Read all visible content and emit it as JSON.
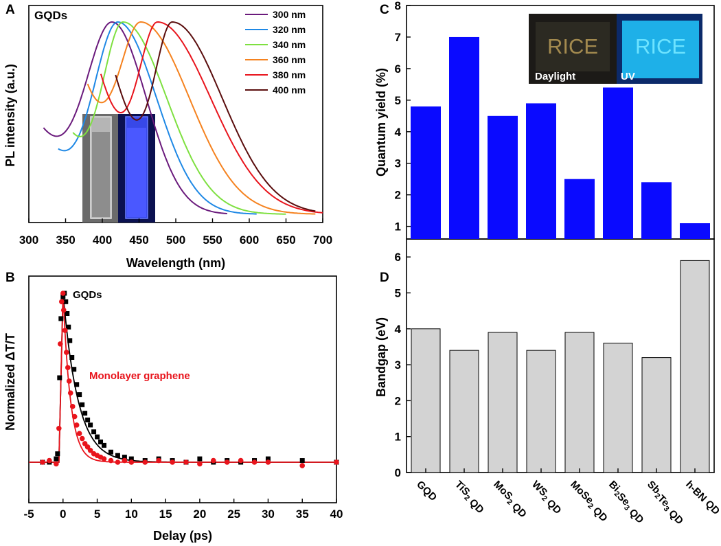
{
  "chart_data": [
    {
      "panel": "A",
      "type": "line",
      "title": "GQDs",
      "xlabel": "Wavelength (nm)",
      "ylabel": "PL intensity (a.u.)",
      "xlim": [
        300,
        700
      ],
      "xticks": [
        300,
        350,
        400,
        450,
        500,
        550,
        600,
        650,
        700
      ],
      "legend_position": "top-right",
      "series": [
        {
          "name": "300 nm",
          "color": "#6a1a7c",
          "x_start": 320,
          "x_end": 570,
          "peak": 413,
          "start_level": 0.42,
          "width_left": 45,
          "width_right": 55
        },
        {
          "name": "320 nm",
          "color": "#1e88e5",
          "x_start": 340,
          "x_end": 610,
          "peak": 421,
          "start_level": 0.3,
          "width_left": 40,
          "width_right": 62
        },
        {
          "name": "340 nm",
          "color": "#7ee040",
          "x_start": 360,
          "x_end": 650,
          "peak": 428,
          "start_level": 0.38,
          "width_left": 35,
          "width_right": 70
        },
        {
          "name": "360 nm",
          "color": "#f5821f",
          "x_start": 380,
          "x_end": 690,
          "peak": 452,
          "start_level": 0.64,
          "width_left": 40,
          "width_right": 78
        },
        {
          "name": "380 nm",
          "color": "#e8141c",
          "x_start": 398,
          "x_end": 700,
          "peak": 475,
          "start_level": 0.72,
          "width_left": 35,
          "width_right": 85
        },
        {
          "name": "400 nm",
          "color": "#5a0d0d",
          "x_start": 418,
          "x_end": 690,
          "peak": 495,
          "start_level": 0.72,
          "width_left": 32,
          "width_right": 80
        }
      ],
      "inset_label": "",
      "annotations": []
    },
    {
      "panel": "B",
      "type": "scatter",
      "xlabel": "Delay (ps)",
      "ylabel": "Normalized ΔT/T",
      "xlim": [
        -5,
        40
      ],
      "xticks": [
        -5,
        0,
        5,
        10,
        15,
        20,
        25,
        30,
        35,
        40
      ],
      "series": [
        {
          "name": "GQDs",
          "color": "#000000",
          "marker": "square",
          "tau": 2.2,
          "x": [
            -3,
            -2,
            -1,
            -0.8,
            -0.5,
            -0.3,
            0,
            0.2,
            0.4,
            0.6,
            0.8,
            1.0,
            1.3,
            1.6,
            2.0,
            2.4,
            2.8,
            3.2,
            3.6,
            4.0,
            4.5,
            5.0,
            5.5,
            6.0,
            7.0,
            8.0,
            9.0,
            10,
            12,
            14,
            16,
            18,
            20,
            22,
            24,
            26,
            28,
            30,
            35,
            40
          ],
          "y": [
            0.0,
            0.0,
            0.02,
            0.05,
            0.5,
            0.85,
            0.98,
            1.0,
            0.95,
            0.88,
            0.8,
            0.72,
            0.62,
            0.55,
            0.46,
            0.4,
            0.34,
            0.29,
            0.25,
            0.22,
            0.18,
            0.15,
            0.12,
            0.1,
            0.06,
            0.04,
            0.03,
            0.02,
            0.01,
            0.02,
            0.01,
            0.0,
            0.02,
            0.0,
            0.01,
            0.0,
            0.01,
            0.02,
            0.01,
            0.0
          ]
        },
        {
          "name": "Monolayer graphene",
          "color": "#e8141c",
          "marker": "circle",
          "tau": 1.1,
          "x": [
            -3,
            -2,
            -1,
            -0.6,
            -0.4,
            -0.2,
            0,
            0.1,
            0.3,
            0.5,
            0.7,
            0.9,
            1.1,
            1.4,
            1.7,
            2.0,
            2.4,
            2.8,
            3.2,
            3.6,
            4.0,
            4.5,
            5.0,
            5.5,
            6.0,
            7.0,
            8.0,
            9.0,
            10,
            12,
            14,
            16,
            18,
            20,
            22,
            24,
            26,
            28,
            30,
            35,
            40
          ],
          "y": [
            0.0,
            0.01,
            -0.01,
            0.2,
            0.7,
            0.95,
            1.0,
            0.9,
            0.78,
            0.65,
            0.56,
            0.48,
            0.41,
            0.33,
            0.27,
            0.22,
            0.17,
            0.14,
            0.11,
            0.09,
            0.07,
            0.05,
            0.04,
            0.03,
            0.02,
            0.01,
            0.0,
            0.01,
            0.0,
            0.0,
            0.01,
            0.0,
            0.0,
            -0.01,
            0.01,
            0.0,
            0.01,
            0.0,
            0.0,
            -0.02,
            0.0
          ]
        }
      ]
    },
    {
      "panel": "C",
      "type": "bar",
      "ylabel": "Quantum yield (%)",
      "ylim": [
        0.6,
        8
      ],
      "yticks": [
        1,
        2,
        3,
        4,
        5,
        6,
        7,
        8
      ],
      "bar_color": "#0a0aff",
      "categories": [
        "GQD",
        "TiS2 QD",
        "MoS2 QD",
        "WS2 QD",
        "MoSe2 QD",
        "Bi2Se3 QD",
        "Sb2Te3 QD",
        "h-BN QD"
      ],
      "values": [
        4.8,
        7.0,
        4.5,
        4.9,
        2.5,
        5.4,
        2.4,
        1.1
      ],
      "inset_labels": [
        "RICE",
        "RICE",
        "Daylight",
        "UV"
      ]
    },
    {
      "panel": "D",
      "type": "bar",
      "ylabel": "Bandgap (eV)",
      "ylim": [
        0,
        6.5
      ],
      "yticks": [
        0,
        1,
        2,
        3,
        4,
        5,
        6
      ],
      "bar_color": "#d3d3d3",
      "categories": [
        "GQD",
        "TiS2 QD",
        "MoS2 QD",
        "WS2 QD",
        "MoSe2 QD",
        "Bi2Se3 QD",
        "Sb2Te3 QD",
        "h-BN QD"
      ],
      "category_labels": [
        [
          {
            "t": "GQD"
          }
        ],
        [
          {
            "t": "TiS"
          },
          {
            "t": "2",
            "sub": true
          },
          {
            "t": " QD"
          }
        ],
        [
          {
            "t": "MoS"
          },
          {
            "t": "2",
            "sub": true
          },
          {
            "t": " QD"
          }
        ],
        [
          {
            "t": "WS"
          },
          {
            "t": "2",
            "sub": true
          },
          {
            "t": " QD"
          }
        ],
        [
          {
            "t": "MoSe"
          },
          {
            "t": "2",
            "sub": true
          },
          {
            "t": " QD"
          }
        ],
        [
          {
            "t": "Bi"
          },
          {
            "t": "2",
            "sub": true
          },
          {
            "t": "Se"
          },
          {
            "t": "3",
            "sub": true
          },
          {
            "t": " QD"
          }
        ],
        [
          {
            "t": "Sb"
          },
          {
            "t": "2",
            "sub": true
          },
          {
            "t": "Te"
          },
          {
            "t": "3",
            "sub": true
          },
          {
            "t": " QD"
          }
        ],
        [
          {
            "t": "h-BN QD"
          }
        ]
      ],
      "values": [
        4.0,
        3.4,
        3.9,
        3.4,
        3.9,
        3.6,
        3.2,
        5.9
      ]
    }
  ],
  "panel_letters": [
    "A",
    "B",
    "C",
    "D"
  ]
}
